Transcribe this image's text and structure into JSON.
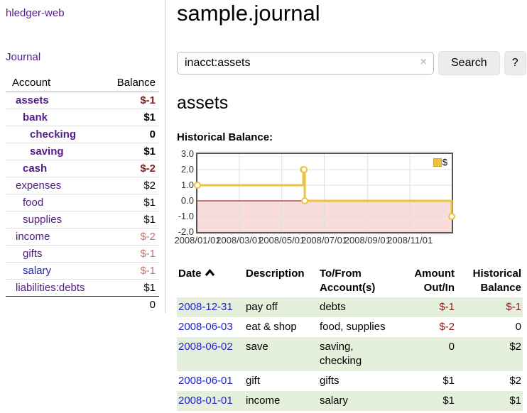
{
  "sidebar": {
    "brand": "hledger-web",
    "nav": {
      "journal": "Journal"
    },
    "accounts": {
      "headers": {
        "account": "Account",
        "balance": "Balance"
      },
      "rows": [
        {
          "name": "assets",
          "balance": "$-1"
        },
        {
          "name": "bank",
          "balance": "$1"
        },
        {
          "name": "checking",
          "balance": "0"
        },
        {
          "name": "saving",
          "balance": "$1"
        },
        {
          "name": "cash",
          "balance": "$-2"
        },
        {
          "name": "expenses",
          "balance": "$2"
        },
        {
          "name": "food",
          "balance": "$1"
        },
        {
          "name": "supplies",
          "balance": "$1"
        },
        {
          "name": "income",
          "balance": "$-2"
        },
        {
          "name": "gifts",
          "balance": "$-1"
        },
        {
          "name": "salary",
          "balance": "$-1"
        },
        {
          "name": "liabilities:debts",
          "balance": "$1"
        }
      ],
      "total": "0"
    }
  },
  "header": {
    "title": "sample.journal"
  },
  "search": {
    "value": "inacct:assets",
    "clear_label": "×",
    "button_label": "Search",
    "help_label": "?"
  },
  "account_page": {
    "heading": "assets",
    "chart_label": "Historical Balance:"
  },
  "chart_data": {
    "type": "line",
    "title": "Historical Balance",
    "step": true,
    "legend": "$",
    "legend_position": "top-right",
    "xlabel": "",
    "ylabel": "",
    "grid": true,
    "x_range": [
      "2008-01-01",
      "2008-12-31"
    ],
    "ylim": [
      -2,
      3
    ],
    "y_ticks": [
      "3.0",
      "2.0",
      "1.0",
      "0.0",
      "-1.0",
      "-2.0"
    ],
    "x_ticks": [
      "2008/01/01",
      "2008/03/01",
      "2008/05/01",
      "2008/07/01",
      "2008/09/01",
      "2008/11/01"
    ],
    "x_tick_dates": [
      "2008-01-01",
      "2008-03-01",
      "2008-05-01",
      "2008-07-01",
      "2008-09-01",
      "2008-11-01"
    ],
    "series": [
      {
        "name": "$",
        "color": "#edc240",
        "points": [
          [
            "2008-01-01",
            1
          ],
          [
            "2008-06-01",
            2
          ],
          [
            "2008-06-02",
            2
          ],
          [
            "2008-06-03",
            0
          ],
          [
            "2008-12-31",
            -1
          ]
        ]
      }
    ],
    "colors": {
      "line": "#edc240",
      "marker_fill": "#ffffff",
      "negative_region": "#f9dcdc",
      "zero_line": "#8b0000",
      "grid": "#e0e0e0",
      "border": "#545454"
    }
  },
  "register": {
    "headers": {
      "date": "Date",
      "description": "Description",
      "tofrom": "To/From Account(s)",
      "amount": "Amount Out/In",
      "balance": "Historical Balance"
    },
    "rows": [
      {
        "date": "2008-12-31",
        "description": "pay off",
        "accounts": "debts",
        "amount": "$-1",
        "balance": "$-1"
      },
      {
        "date": "2008-06-03",
        "description": "eat & shop",
        "accounts": "food, supplies",
        "amount": "$-2",
        "balance": "0"
      },
      {
        "date": "2008-06-02",
        "description": "save",
        "accounts": "saving, checking",
        "amount": "0",
        "balance": "$2"
      },
      {
        "date": "2008-06-01",
        "description": "gift",
        "accounts": "gifts",
        "amount": "$1",
        "balance": "$2"
      },
      {
        "date": "2008-01-01",
        "description": "income",
        "accounts": "salary",
        "amount": "$1",
        "balance": "$1"
      }
    ]
  }
}
